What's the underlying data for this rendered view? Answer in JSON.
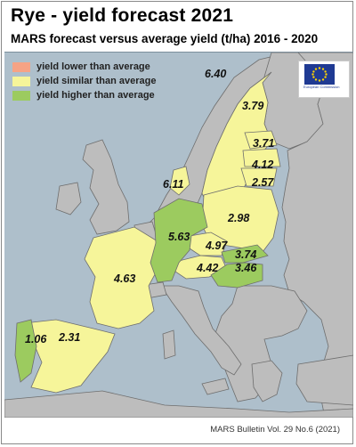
{
  "title": "Rye - yield forecast 2021",
  "subtitle": "MARS forecast versus average yield (t/ha) 2016 - 2020",
  "legend": {
    "items": [
      {
        "label": "yield lower than average",
        "color": "#f6a385"
      },
      {
        "label": "yield similar than average",
        "color": "#f6f59a"
      },
      {
        "label": "yield higher than average",
        "color": "#9ccb5f"
      }
    ]
  },
  "logo": {
    "text": "European Commission"
  },
  "colors": {
    "sea": "#aebfcb",
    "non_eu": "#bdbdbd",
    "similar": "#f6f59a",
    "higher": "#9ccb5f",
    "border": "#6e6e6e"
  },
  "values": {
    "se_north": "6.40",
    "se_south": "3.79",
    "ee": "3.71",
    "lv": "4.12",
    "lt": "2.57",
    "dk": "6.11",
    "pl": "2.98",
    "de": "5.63",
    "cz": "4.97",
    "sk": "3.74",
    "at": "4.42",
    "hu": "3.46",
    "fr": "4.63",
    "pt": "1.06",
    "es": "2.31"
  },
  "footer": "MARS Bulletin Vol. 29 No.6 (2021)"
}
